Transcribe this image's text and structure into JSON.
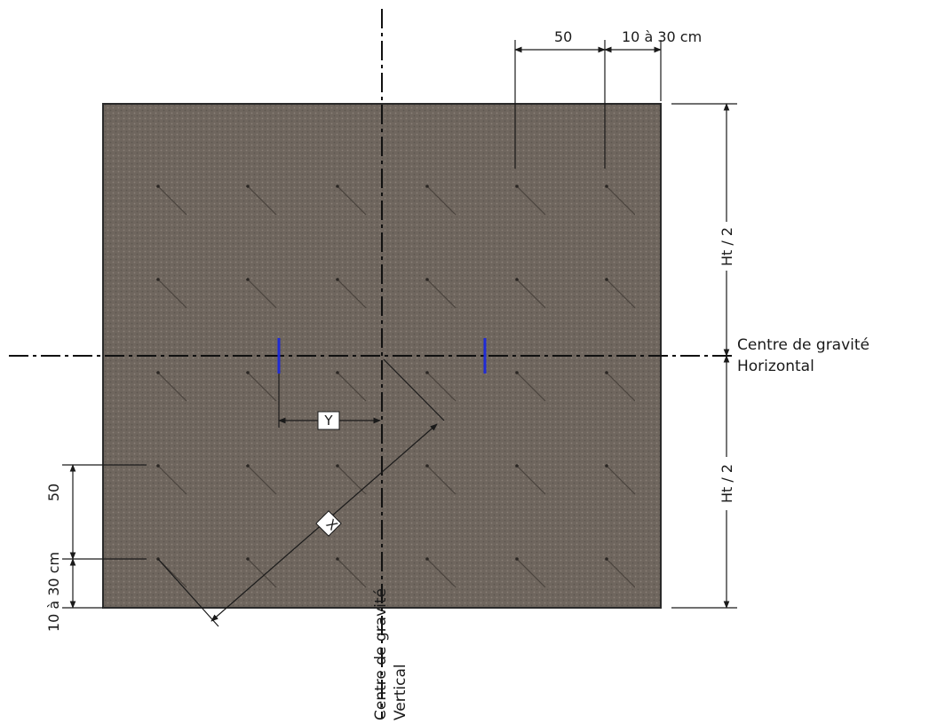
{
  "colors": {
    "panel_fill": "#6f665e",
    "panel_texture": "#8a8178",
    "panel_border": "#2a2a2a",
    "anchor_mark": "#1f2bd6",
    "ink": "#1a1a1a"
  },
  "anchor_grid": {
    "columns": 6,
    "rows": 5
  },
  "labels": {
    "top_spacing": "50",
    "top_edge": "10 à 30 cm",
    "half_height_top": "Ht / 2",
    "half_height_bottom": "Ht / 2",
    "cg_horizontal_line1": "Centre de gravité",
    "cg_horizontal_line2": "Horizontal",
    "left_spacing": "50",
    "left_edge": "10 à 30 cm",
    "cg_vertical_line1": "Centre de gravité",
    "cg_vertical_line2": "Vertical",
    "dim_y": "Y",
    "dim_x": "X"
  }
}
